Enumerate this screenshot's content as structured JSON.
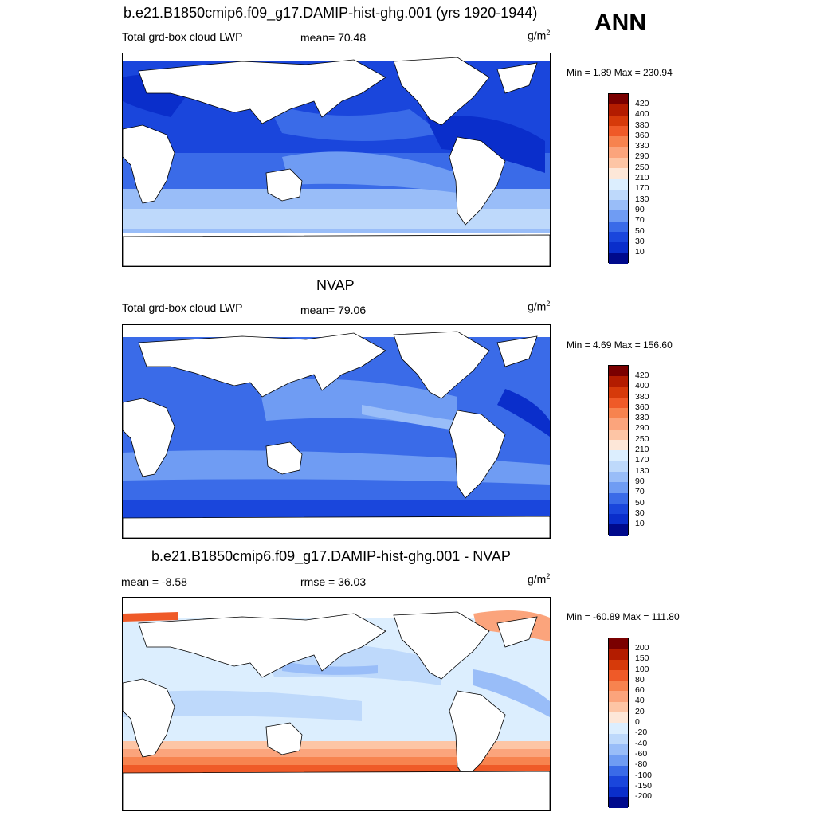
{
  "page": {
    "season": "ANN"
  },
  "panels": [
    {
      "title": "b.e21.B1850cmip6.f09_g17.DAMIP-hist-ghg.001 (yrs 1920-1944)",
      "left_label": "Total grd-box cloud LWP",
      "center_label": "mean=  70.48",
      "units": "g/m",
      "units_sup": "2",
      "minmax": "Min =   1.89 Max = 230.94"
    },
    {
      "title": "NVAP",
      "left_label": "Total grd-box cloud LWP",
      "center_label": "mean=  79.06",
      "units": "g/m",
      "units_sup": "2",
      "minmax": "Min =   4.69 Max = 156.60"
    },
    {
      "title": "b.e21.B1850cmip6.f09_g17.DAMIP-hist-ghg.001 - NVAP",
      "left_label": "mean =  -8.58",
      "center_label": "rmse =  36.03",
      "units": "g/m",
      "units_sup": "2",
      "minmax": "Min = -60.89 Max = 111.80"
    }
  ],
  "colorbars": {
    "absolute": {
      "labels": [
        "420",
        "400",
        "380",
        "360",
        "330",
        "290",
        "250",
        "210",
        "170",
        "130",
        "90",
        "70",
        "50",
        "30",
        "10"
      ],
      "colors": [
        "#7a0000",
        "#b31c00",
        "#d63a0a",
        "#ef5a28",
        "#f7834f",
        "#fba47c",
        "#fdc5a5",
        "#fde7d8",
        "#dceefe",
        "#bed9fb",
        "#99bdf8",
        "#6f9cf3",
        "#3a6be8",
        "#1a46dc",
        "#0a2ecb",
        "#000a8c"
      ]
    },
    "difference": {
      "labels": [
        "200",
        "150",
        "100",
        "80",
        "60",
        "40",
        "20",
        "0",
        "-20",
        "-40",
        "-60",
        "-80",
        "-100",
        "-150",
        "-200"
      ],
      "colors": [
        "#7a0000",
        "#b31c00",
        "#d63a0a",
        "#ef5a28",
        "#f7834f",
        "#fba47c",
        "#fdc5a5",
        "#fde7d8",
        "#dceefe",
        "#bed9fb",
        "#99bdf8",
        "#6f9cf3",
        "#3a6be8",
        "#1a46dc",
        "#0a2ecb",
        "#000a8c"
      ]
    }
  }
}
